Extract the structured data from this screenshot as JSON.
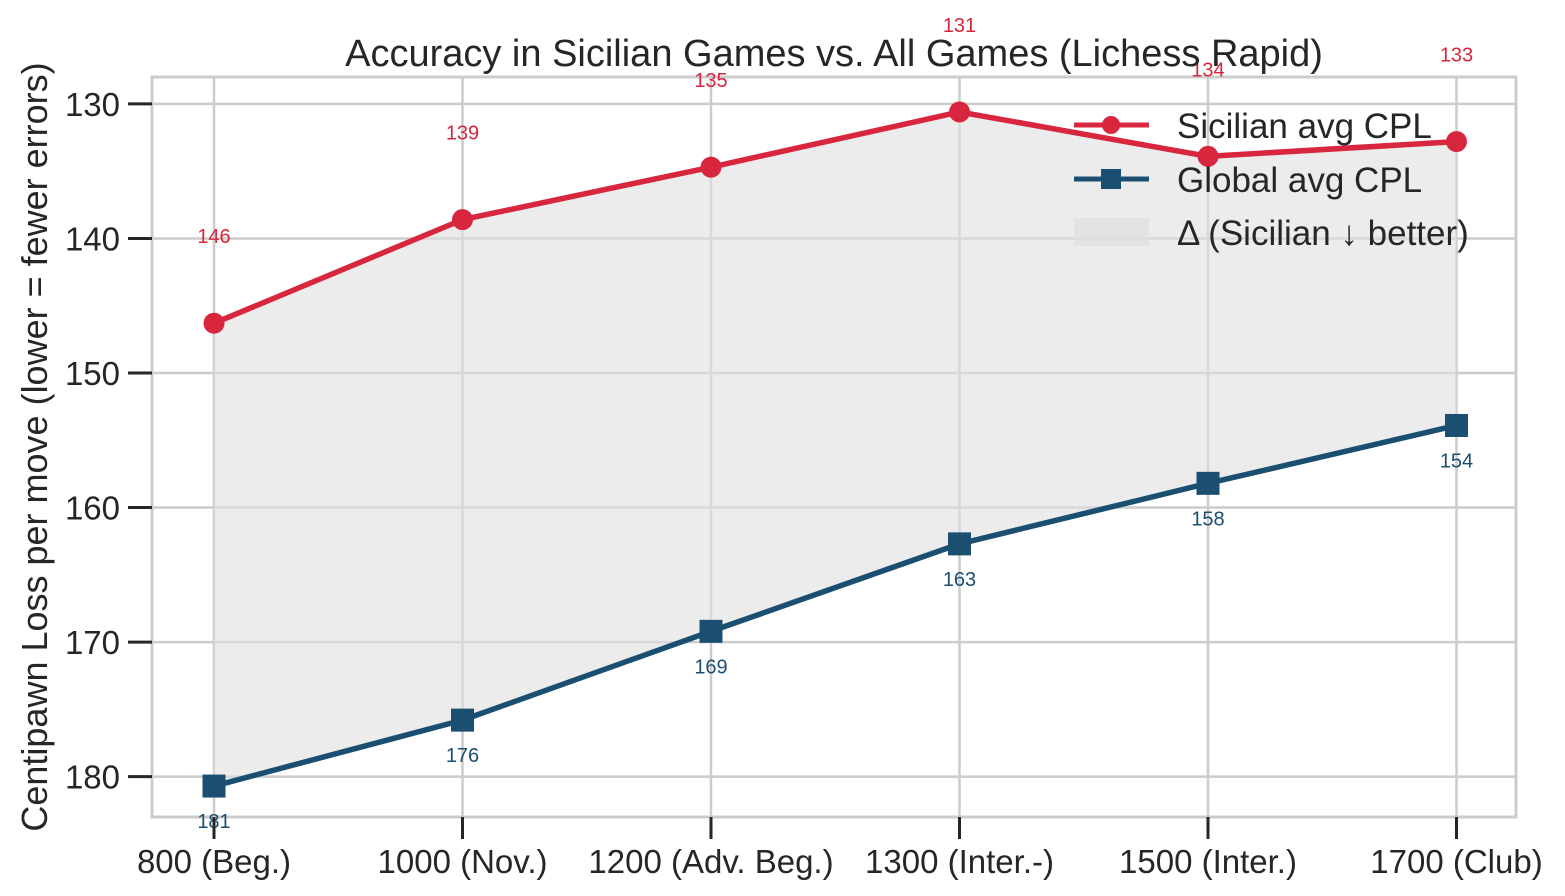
{
  "chart_data": {
    "type": "line",
    "title": "Accuracy in Sicilian Games vs. All Games (Lichess Rapid)",
    "ylabel": "Centipawn Loss per move (lower = fewer errors)",
    "xlabel": "",
    "categories": [
      "800 (Beg.)",
      "1000 (Nov.)",
      "1200 (Adv. Beg.)",
      "1300 (Inter.-)",
      "1500 (Inter.)",
      "1700 (Club)"
    ],
    "y_inverted": true,
    "ylim": [
      183,
      128
    ],
    "yticks": [
      130,
      140,
      150,
      160,
      170,
      180
    ],
    "grid": true,
    "legend_position": "top-right",
    "series": [
      {
        "name": "Sicilian avg CPL",
        "color": "#d7263d",
        "marker": "circle",
        "values": [
          146.3,
          138.6,
          134.7,
          130.6,
          133.9,
          132.8
        ],
        "labels": [
          "146",
          "139",
          "135",
          "131",
          "134",
          "133"
        ]
      },
      {
        "name": "Global avg CPL",
        "color": "#1b4f72",
        "marker": "square",
        "values": [
          180.7,
          175.8,
          169.2,
          162.7,
          158.2,
          153.9
        ],
        "labels": [
          "181",
          "176",
          "169",
          "163",
          "158",
          "154"
        ]
      }
    ],
    "fill_between": {
      "name": "Δ (Sicilian ↓ better)",
      "color": "#e0e0e0"
    }
  }
}
